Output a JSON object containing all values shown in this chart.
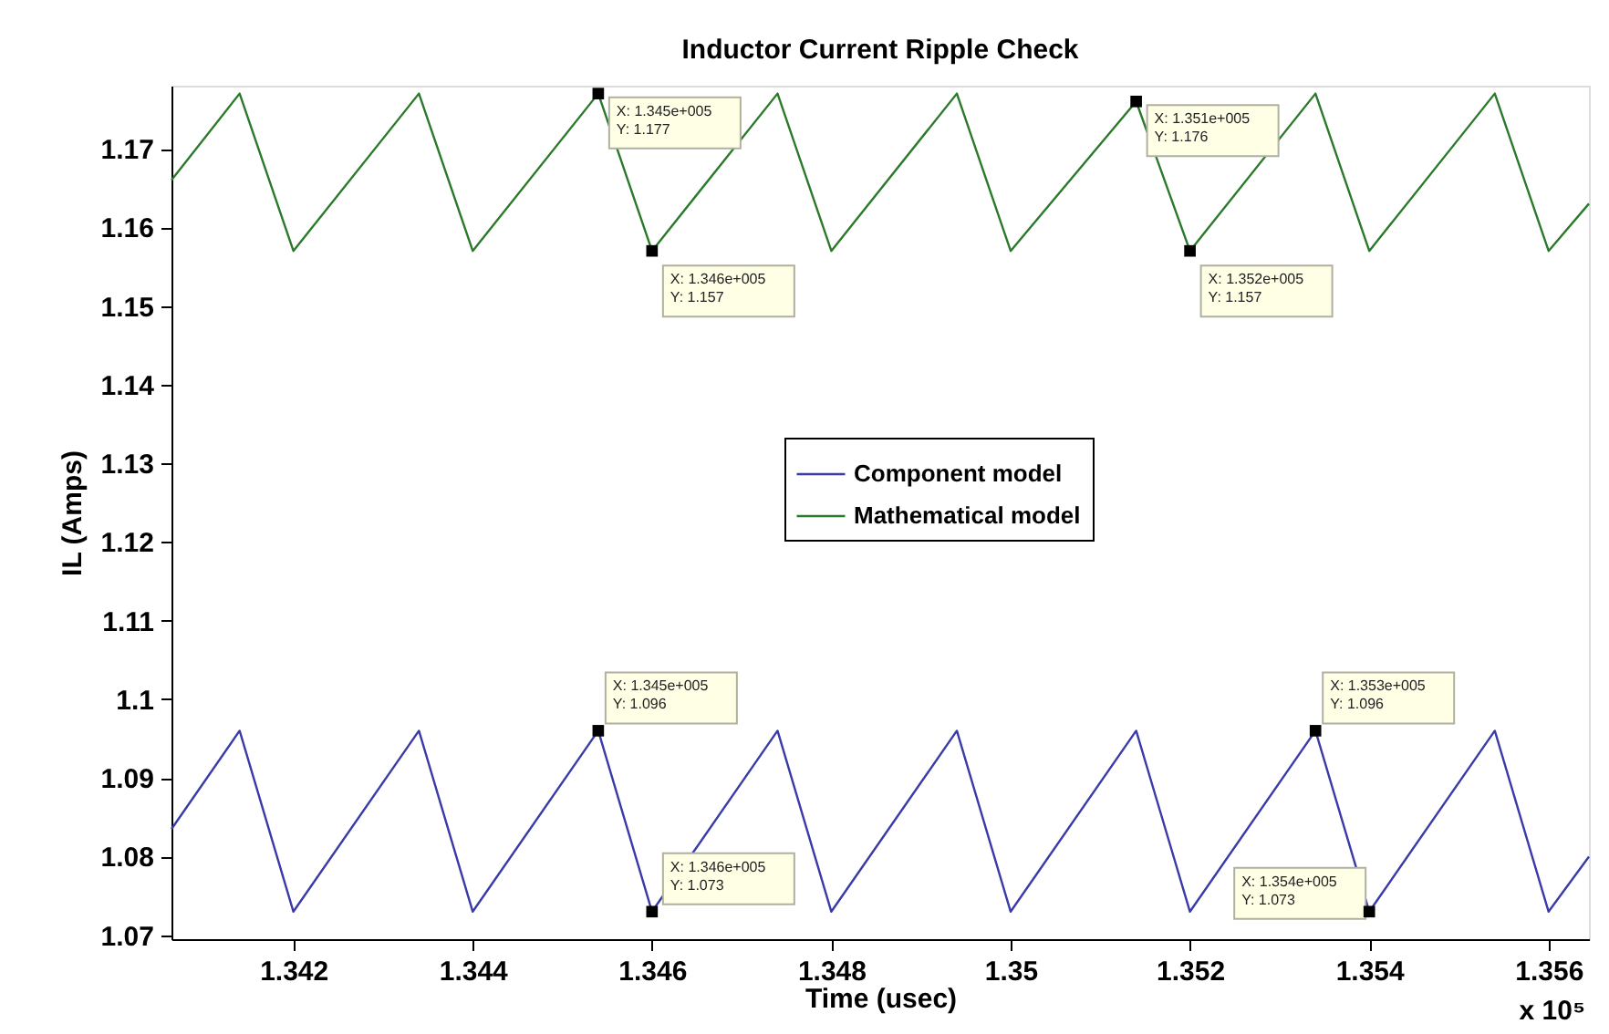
{
  "chart_data": {
    "type": "line",
    "title": "Inductor Current Ripple Check",
    "xlabel": "Time (usec)",
    "ylabel": "IL (Amps)",
    "xlim": [
      1.34064,
      1.35645
    ],
    "ylim": [
      1.0695,
      1.178
    ],
    "xticks": [
      1.342,
      1.344,
      1.346,
      1.348,
      1.35,
      1.352,
      1.354,
      1.356
    ],
    "yticks": [
      1.07,
      1.08,
      1.09,
      1.1,
      1.11,
      1.12,
      1.13,
      1.14,
      1.15,
      1.16,
      1.17
    ],
    "x": [
      1.34064,
      1.3414,
      1.342,
      1.3434,
      1.344,
      1.3454,
      1.346,
      1.3474,
      1.348,
      1.3494,
      1.35,
      1.3514,
      1.352,
      1.3534,
      1.354,
      1.3554,
      1.356,
      1.35645
    ],
    "series": [
      {
        "name": "Component model",
        "color": "#3a3aa8",
        "values": [
          1.0835,
          1.096,
          1.073,
          1.096,
          1.073,
          1.096,
          1.073,
          1.096,
          1.073,
          1.096,
          1.073,
          1.096,
          1.073,
          1.096,
          1.073,
          1.096,
          1.073,
          1.08
        ]
      },
      {
        "name": "Mathematical model",
        "color": "#2b7a2b",
        "values": [
          1.166,
          1.177,
          1.157,
          1.177,
          1.157,
          1.177,
          1.157,
          1.177,
          1.157,
          1.177,
          1.157,
          1.176,
          1.157,
          1.177,
          1.157,
          1.177,
          1.157,
          1.163
        ]
      }
    ],
    "legend": "right",
    "grid": false,
    "marker": "none",
    "line_style": "solid",
    "annotations": [
      {
        "text": "X: 1.345e+005\nY: 1.177",
        "x": 1.3454,
        "y": 1.177
      },
      {
        "text": "X: 1.346e+005\nY: 1.157",
        "x": 1.346,
        "y": 1.157
      },
      {
        "text": "X: 1.351e+005\nY: 1.176",
        "x": 1.3514,
        "y": 1.176
      },
      {
        "text": "X: 1.352e+005\nY: 1.157",
        "x": 1.352,
        "y": 1.157
      },
      {
        "text": "X: 1.345e+005\nY: 1.096",
        "x": 1.3454,
        "y": 1.096
      },
      {
        "text": "X: 1.346e+005\nY: 1.073",
        "x": 1.346,
        "y": 1.073
      },
      {
        "text": "X: 1.353e+005\nY: 1.096",
        "x": 1.3534,
        "y": 1.096
      },
      {
        "text": "X: 1.354e+005\nY: 1.073",
        "x": 1.354,
        "y": 1.073
      },
      "x 10⁵"
    ]
  }
}
